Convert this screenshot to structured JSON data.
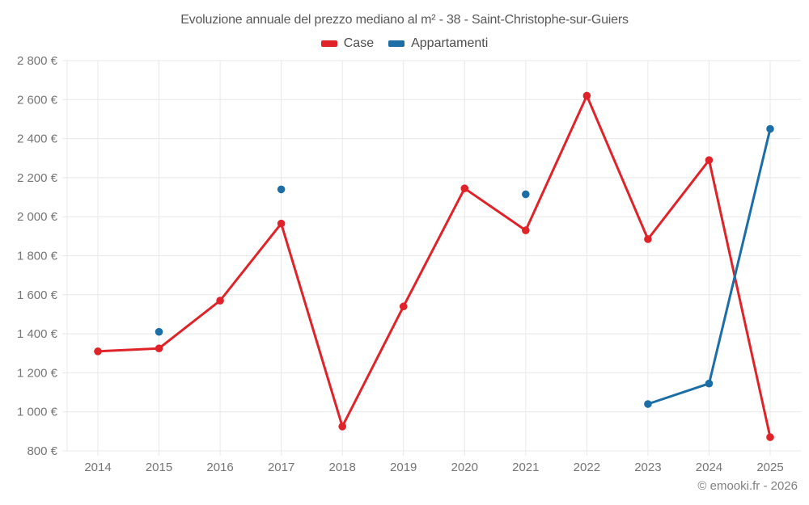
{
  "title": "Evoluzione annuale del prezzo mediano al m² - 38 - Saint-Christophe-sur-Guiers",
  "legend": {
    "items": [
      {
        "label": "Case",
        "color": "#e02329"
      },
      {
        "label": "Appartamenti",
        "color": "#1c6ea6"
      }
    ]
  },
  "footer": {
    "credit": "© emooki.fr - 2026"
  },
  "colors": {
    "case_red": "#e02329",
    "appartamenti_blue": "#1c6ea6",
    "gridline": "#e8e8e8",
    "axis_label": "#757575",
    "title_text": "#595959"
  },
  "chart_data": {
    "type": "line",
    "title": "Evoluzione annuale del prezzo mediano al m² - 38 - Saint-Christophe-sur-Guiers",
    "x": [
      2014,
      2015,
      2016,
      2017,
      2018,
      2019,
      2020,
      2021,
      2022,
      2023,
      2024,
      2025
    ],
    "series": [
      {
        "name": "Case",
        "color": "#e02329",
        "values": [
          1310,
          1325,
          1570,
          1965,
          925,
          1540,
          2145,
          1930,
          2620,
          1885,
          2290,
          870
        ]
      },
      {
        "name": "Appartamenti",
        "color": "#1c6ea6",
        "values": [
          null,
          1410,
          null,
          2140,
          null,
          null,
          null,
          2115,
          null,
          1040,
          1145,
          2450
        ]
      }
    ],
    "ylim": [
      800,
      2800
    ],
    "y_tick_step": 200,
    "y_tick_suffix": " €",
    "y_tick_labels": [
      "800 €",
      "1 000 €",
      "1 200 €",
      "1 400 €",
      "1 600 €",
      "1 800 €",
      "2 000 €",
      "2 200 €",
      "2 400 €",
      "2 600 €",
      "2 800 €"
    ],
    "grid": true,
    "legend_position": "top"
  }
}
